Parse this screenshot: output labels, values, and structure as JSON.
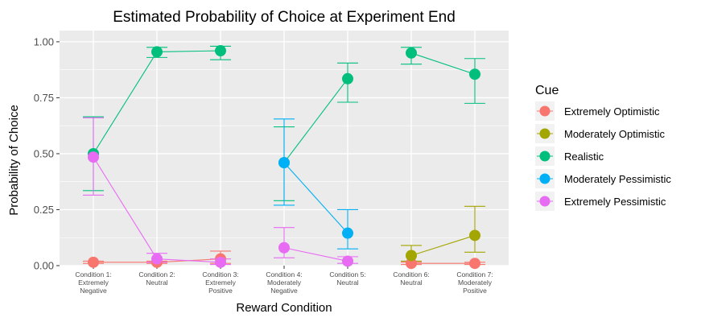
{
  "chart_data": {
    "type": "scatter",
    "title": "Estimated Probability of Choice at Experiment End",
    "xlabel": "Reward Condition",
    "ylabel": "Probability of Choice",
    "ylim": [
      0,
      1.05
    ],
    "y_ticks": [
      0.0,
      0.25,
      0.5,
      0.75,
      1.0
    ],
    "y_tick_labels": [
      "0.00",
      "0.25",
      "0.50",
      "0.75",
      "1.00"
    ],
    "grid": true,
    "legend_position": "right",
    "legend_title": "Cue",
    "categories": [
      [
        "Condition 1:",
        "Extremely",
        "Negative"
      ],
      [
        "Condition 2:",
        "Neutral"
      ],
      [
        "Condition 3:",
        "Extremely",
        "Positive"
      ],
      [
        "Condition 4:",
        "Moderately",
        "Negative"
      ],
      [
        "Condition 5:",
        "Neutral"
      ],
      [
        "Condition 6:",
        "Neutral"
      ],
      [
        "Condition 7:",
        "Moderately",
        "Positive"
      ]
    ],
    "groups": [
      [
        0,
        1,
        2
      ],
      [
        3,
        4
      ],
      [
        5,
        6
      ]
    ],
    "series": [
      {
        "name": "Extremely Optimistic",
        "color": "#F8766D",
        "points": [
          {
            "x": 0,
            "y": 0.015,
            "lo": 0.01,
            "hi": 0.02
          },
          {
            "x": 1,
            "y": 0.015,
            "lo": 0.01,
            "hi": 0.02
          },
          {
            "x": 2,
            "y": 0.03,
            "lo": 0.01,
            "hi": 0.065
          },
          {
            "x": 5,
            "y": 0.01,
            "lo": 0.005,
            "hi": 0.015
          },
          {
            "x": 6,
            "y": 0.01,
            "lo": 0.005,
            "hi": 0.015
          }
        ]
      },
      {
        "name": "Moderately Optimistic",
        "color": "#A3A500",
        "points": [
          {
            "x": 5,
            "y": 0.045,
            "lo": 0.02,
            "hi": 0.09
          },
          {
            "x": 6,
            "y": 0.135,
            "lo": 0.06,
            "hi": 0.265
          }
        ]
      },
      {
        "name": "Realistic",
        "color": "#00BF7D",
        "points": [
          {
            "x": 0,
            "y": 0.5,
            "lo": 0.335,
            "hi": 0.665
          },
          {
            "x": 1,
            "y": 0.955,
            "lo": 0.93,
            "hi": 0.975
          },
          {
            "x": 2,
            "y": 0.96,
            "lo": 0.92,
            "hi": 0.98
          },
          {
            "x": 3,
            "y": 0.46,
            "lo": 0.29,
            "hi": 0.62
          },
          {
            "x": 4,
            "y": 0.835,
            "lo": 0.73,
            "hi": 0.905
          },
          {
            "x": 5,
            "y": 0.95,
            "lo": 0.9,
            "hi": 0.975
          },
          {
            "x": 6,
            "y": 0.855,
            "lo": 0.725,
            "hi": 0.925
          }
        ]
      },
      {
        "name": "Moderately Pessimistic",
        "color": "#00B0F6",
        "points": [
          {
            "x": 3,
            "y": 0.46,
            "lo": 0.27,
            "hi": 0.655
          },
          {
            "x": 4,
            "y": 0.145,
            "lo": 0.075,
            "hi": 0.25
          }
        ]
      },
      {
        "name": "Extremely Pessimistic",
        "color": "#E76BF3",
        "points": [
          {
            "x": 0,
            "y": 0.485,
            "lo": 0.315,
            "hi": 0.66
          },
          {
            "x": 1,
            "y": 0.03,
            "lo": 0.015,
            "hi": 0.055
          },
          {
            "x": 2,
            "y": 0.015,
            "lo": 0.005,
            "hi": 0.03
          },
          {
            "x": 3,
            "y": 0.08,
            "lo": 0.035,
            "hi": 0.17
          },
          {
            "x": 4,
            "y": 0.02,
            "lo": 0.01,
            "hi": 0.04
          }
        ]
      }
    ]
  }
}
